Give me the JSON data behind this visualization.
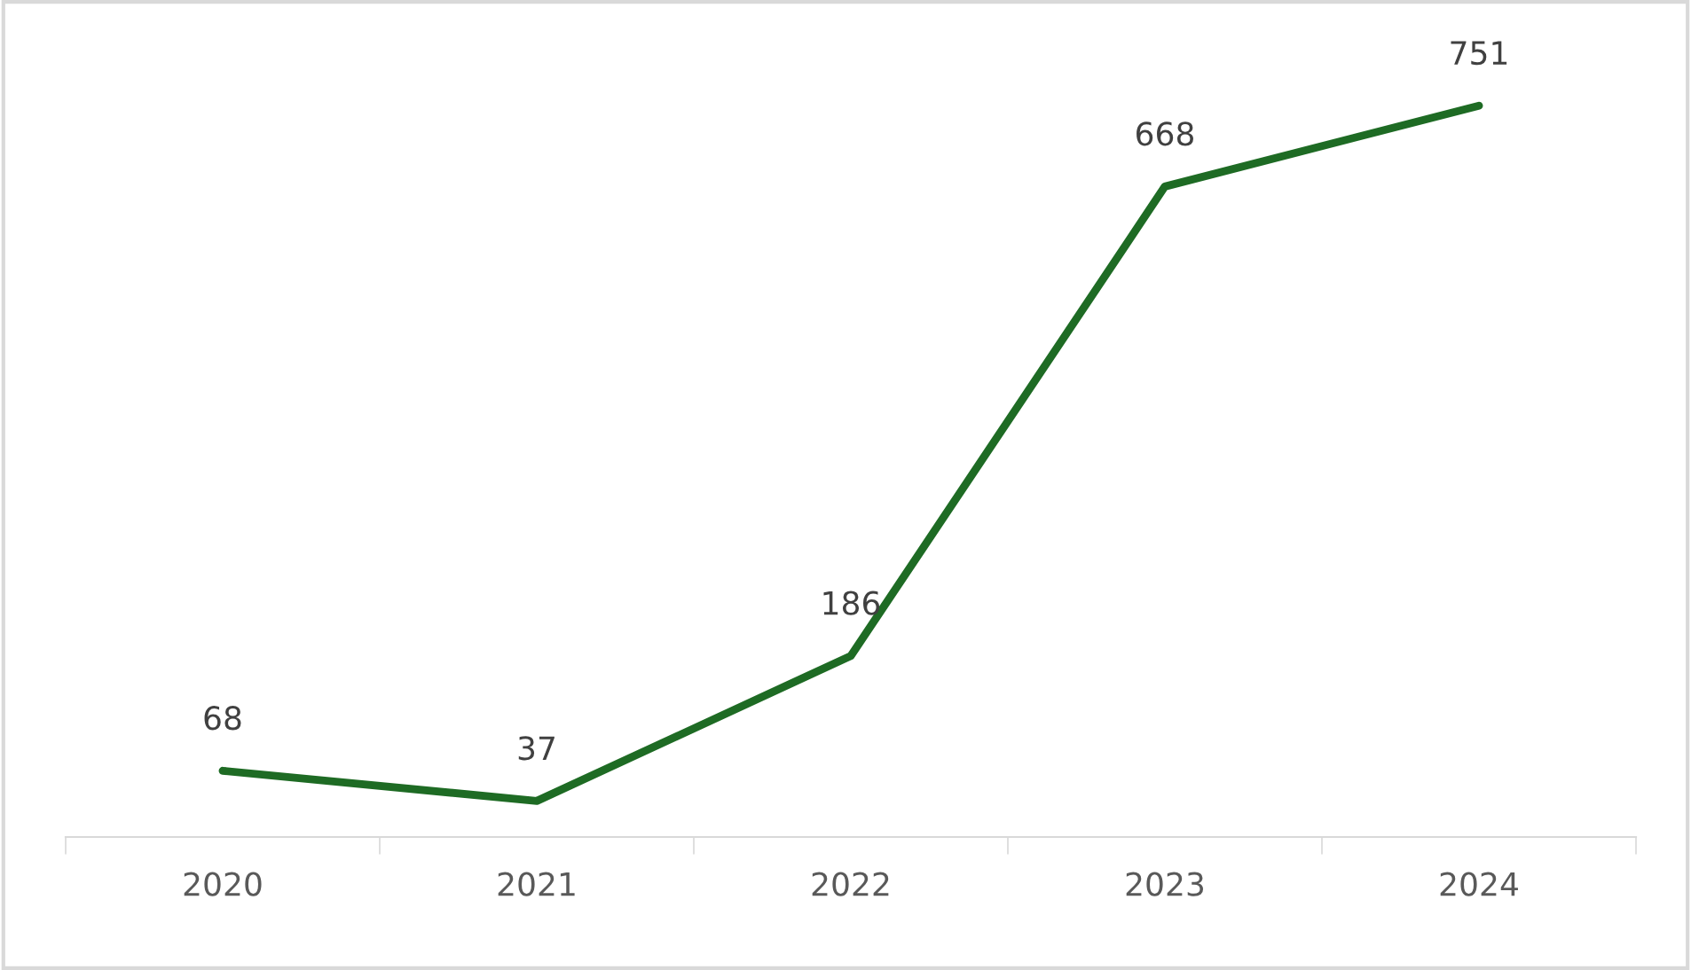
{
  "chart_data": {
    "type": "line",
    "categories": [
      "2020",
      "2021",
      "2022",
      "2023",
      "2024"
    ],
    "series": [
      {
        "color": "#1e6b24",
        "values": [
          68,
          37,
          186,
          668,
          751
        ]
      }
    ],
    "data_labels": true,
    "grid": false,
    "legend": false,
    "marker": "none",
    "line_style": "solid"
  }
}
